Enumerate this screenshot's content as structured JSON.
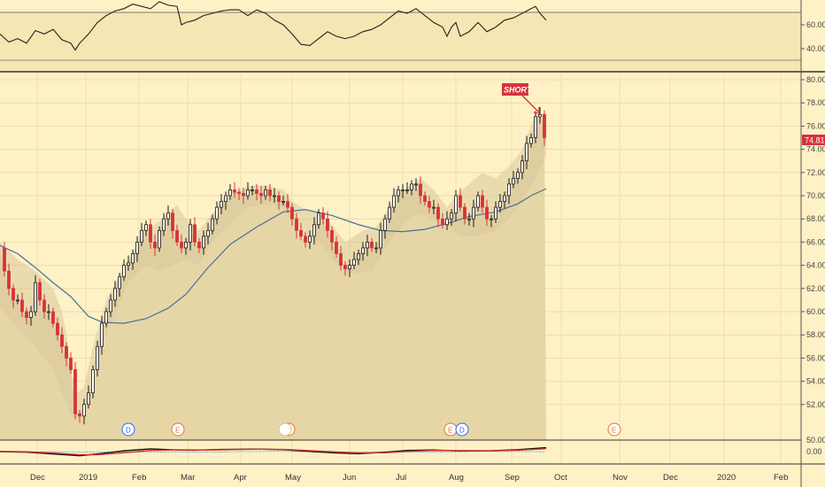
{
  "chart_data": {
    "type": "candlestick",
    "symbol_price_label": "74.81",
    "annotation": "SHORT",
    "x_axis_labels": [
      "Dec",
      "2019",
      "Feb",
      "Mar",
      "Apr",
      "May",
      "Jun",
      "Jul",
      "Aug",
      "Sep",
      "Oct",
      "Nov",
      "Dec",
      "2020",
      "Feb"
    ],
    "price_axis": {
      "ylim": [
        49,
        81.5
      ],
      "ticks": [
        "52.00",
        "54.00",
        "56.00",
        "58.00",
        "60.00",
        "62.00",
        "64.00",
        "66.00",
        "68.00",
        "70.00",
        "72.00",
        "74.00",
        "76.00",
        "78.00",
        "80.00"
      ]
    },
    "rsi_axis": {
      "ticks": [
        "40.00",
        "60.00"
      ]
    },
    "macd_axis": {
      "ticks": [
        "50.00",
        "0.00"
      ]
    },
    "event_markers": [
      {
        "label": "D",
        "color": "#2962ff"
      },
      {
        "label": "E",
        "color": "#e8712b"
      },
      {
        "label": "E",
        "color": "#e8712b"
      },
      {
        "label": "E",
        "color": "#e8712b"
      },
      {
        "label": "D",
        "color": "#2962ff"
      },
      {
        "label": "E",
        "color": "#e8712b"
      }
    ],
    "price_path": [
      [
        0,
        65.5
      ],
      [
        5,
        63.5
      ],
      [
        10,
        62
      ],
      [
        15,
        61
      ],
      [
        20,
        61
      ],
      [
        25,
        60
      ],
      [
        30,
        59.5
      ],
      [
        35,
        60
      ],
      [
        40,
        62.5
      ],
      [
        45,
        61
      ],
      [
        50,
        60
      ],
      [
        55,
        60
      ],
      [
        60,
        59
      ],
      [
        65,
        58
      ],
      [
        70,
        57
      ],
      [
        75,
        56
      ],
      [
        80,
        55
      ],
      [
        85,
        51.2
      ],
      [
        90,
        51
      ],
      [
        95,
        52
      ],
      [
        100,
        53
      ],
      [
        105,
        55
      ],
      [
        110,
        57
      ],
      [
        115,
        59
      ],
      [
        120,
        60
      ],
      [
        125,
        61
      ],
      [
        130,
        62
      ],
      [
        135,
        63
      ],
      [
        140,
        64
      ],
      [
        145,
        64.2
      ],
      [
        150,
        65
      ],
      [
        155,
        66
      ],
      [
        160,
        67
      ],
      [
        165,
        67.5
      ],
      [
        170,
        66
      ],
      [
        175,
        65.5
      ],
      [
        180,
        67
      ],
      [
        185,
        68
      ],
      [
        190,
        68.5
      ],
      [
        195,
        67
      ],
      [
        200,
        66
      ],
      [
        205,
        65.5
      ],
      [
        210,
        66
      ],
      [
        215,
        67.5
      ],
      [
        220,
        66
      ],
      [
        225,
        65.5
      ],
      [
        230,
        66.5
      ],
      [
        235,
        67
      ],
      [
        240,
        68
      ],
      [
        245,
        69
      ],
      [
        250,
        69.5
      ],
      [
        255,
        70
      ],
      [
        260,
        70.5
      ],
      [
        265,
        70.3
      ],
      [
        270,
        70.2
      ],
      [
        275,
        70
      ],
      [
        280,
        70.5
      ],
      [
        285,
        70.5
      ],
      [
        290,
        70.2
      ],
      [
        295,
        70
      ],
      [
        300,
        70.5
      ],
      [
        305,
        70
      ],
      [
        310,
        70
      ],
      [
        315,
        69.5
      ],
      [
        320,
        69.5
      ],
      [
        325,
        69
      ],
      [
        330,
        68
      ],
      [
        335,
        67
      ],
      [
        340,
        66.5
      ],
      [
        345,
        66
      ],
      [
        350,
        66.5
      ],
      [
        355,
        67.5
      ],
      [
        360,
        68.5
      ],
      [
        365,
        68
      ],
      [
        370,
        67
      ],
      [
        375,
        66
      ],
      [
        380,
        65
      ],
      [
        385,
        64
      ],
      [
        390,
        63.7
      ],
      [
        395,
        64
      ],
      [
        400,
        64.5
      ],
      [
        405,
        65
      ],
      [
        410,
        65.5
      ],
      [
        415,
        66
      ],
      [
        420,
        65.5
      ],
      [
        425,
        65.5
      ],
      [
        430,
        67
      ],
      [
        435,
        68
      ],
      [
        440,
        69
      ],
      [
        445,
        70
      ],
      [
        450,
        70.5
      ],
      [
        455,
        70.5
      ],
      [
        460,
        70.5
      ],
      [
        465,
        71
      ],
      [
        470,
        71
      ],
      [
        475,
        70
      ],
      [
        480,
        69.5
      ],
      [
        485,
        69
      ],
      [
        490,
        69
      ],
      [
        495,
        68
      ],
      [
        500,
        67.5
      ],
      [
        505,
        68
      ],
      [
        510,
        68.5
      ],
      [
        515,
        70
      ],
      [
        520,
        69
      ],
      [
        525,
        68
      ],
      [
        530,
        68
      ],
      [
        535,
        69
      ],
      [
        540,
        70
      ],
      [
        545,
        69
      ],
      [
        550,
        68
      ],
      [
        555,
        68
      ],
      [
        560,
        69
      ],
      [
        565,
        69.5
      ],
      [
        570,
        70
      ],
      [
        575,
        71
      ],
      [
        580,
        71.5
      ],
      [
        585,
        72
      ],
      [
        590,
        73
      ],
      [
        595,
        74.5
      ],
      [
        600,
        75
      ],
      [
        605,
        76.8
      ],
      [
        610,
        77
      ],
      [
        615,
        75
      ]
    ],
    "ma_path": [
      [
        0,
        65.7
      ],
      [
        20,
        65
      ],
      [
        40,
        63.8
      ],
      [
        60,
        62.5
      ],
      [
        80,
        61.3
      ],
      [
        100,
        59.6
      ],
      [
        115,
        59.1
      ],
      [
        140,
        59
      ],
      [
        165,
        59.4
      ],
      [
        190,
        60.3
      ],
      [
        210,
        61.5
      ],
      [
        235,
        63.8
      ],
      [
        260,
        65.8
      ],
      [
        290,
        67.3
      ],
      [
        320,
        68.6
      ],
      [
        345,
        68.8
      ],
      [
        375,
        68.3
      ],
      [
        405,
        67.5
      ],
      [
        430,
        67
      ],
      [
        455,
        66.9
      ],
      [
        480,
        67.1
      ],
      [
        505,
        67.6
      ],
      [
        530,
        68.2
      ],
      [
        560,
        68.6
      ],
      [
        585,
        69.3
      ],
      [
        600,
        70
      ],
      [
        617,
        70.6
      ]
    ],
    "upper_band_path": [
      [
        0,
        66
      ],
      [
        20,
        64.5
      ],
      [
        40,
        63.5
      ],
      [
        60,
        62
      ],
      [
        70,
        60
      ],
      [
        75,
        58
      ],
      [
        80,
        55
      ],
      [
        87,
        53
      ],
      [
        95,
        53.5
      ],
      [
        105,
        57
      ],
      [
        120,
        61
      ],
      [
        145,
        64.5
      ],
      [
        165,
        67
      ],
      [
        180,
        67.8
      ],
      [
        190,
        68.6
      ],
      [
        200,
        69.2
      ],
      [
        210,
        68
      ],
      [
        225,
        67
      ],
      [
        240,
        68.5
      ],
      [
        260,
        70
      ],
      [
        280,
        70.8
      ],
      [
        300,
        70.9
      ],
      [
        320,
        70.5
      ],
      [
        330,
        69.5
      ],
      [
        345,
        68.8
      ],
      [
        360,
        68.5
      ],
      [
        375,
        67.5
      ],
      [
        390,
        66
      ],
      [
        400,
        66.5
      ],
      [
        410,
        67
      ],
      [
        425,
        67.3
      ],
      [
        440,
        69
      ],
      [
        460,
        70.7
      ],
      [
        475,
        71.5
      ],
      [
        490,
        70.5
      ],
      [
        505,
        69
      ],
      [
        515,
        70
      ],
      [
        530,
        71
      ],
      [
        545,
        72
      ],
      [
        560,
        71.5
      ],
      [
        575,
        72.5
      ],
      [
        590,
        74
      ],
      [
        605,
        77
      ],
      [
        617,
        76.5
      ]
    ],
    "lower_band_path": [
      [
        0,
        60.5
      ],
      [
        20,
        58.5
      ],
      [
        40,
        57
      ],
      [
        60,
        55
      ],
      [
        75,
        52
      ],
      [
        85,
        50.5
      ],
      [
        95,
        51.5
      ],
      [
        105,
        55
      ],
      [
        120,
        58
      ],
      [
        145,
        62.5
      ],
      [
        165,
        64
      ],
      [
        180,
        63.5
      ],
      [
        195,
        64
      ],
      [
        210,
        64.5
      ],
      [
        225,
        64
      ],
      [
        240,
        66
      ],
      [
        260,
        67.5
      ],
      [
        280,
        69
      ],
      [
        300,
        69.3
      ],
      [
        320,
        69
      ],
      [
        330,
        67.5
      ],
      [
        345,
        66.3
      ],
      [
        360,
        66
      ],
      [
        375,
        64.5
      ],
      [
        390,
        63.5
      ],
      [
        400,
        63.3
      ],
      [
        420,
        63.5
      ],
      [
        440,
        66
      ],
      [
        460,
        68
      ],
      [
        475,
        68.5
      ],
      [
        490,
        67.8
      ],
      [
        505,
        67.5
      ],
      [
        520,
        66.5
      ],
      [
        540,
        66.5
      ],
      [
        560,
        67
      ],
      [
        575,
        68
      ],
      [
        590,
        69.5
      ],
      [
        605,
        71.5
      ],
      [
        617,
        73.5
      ]
    ],
    "rsi_path": [
      [
        0,
        52
      ],
      [
        10,
        45
      ],
      [
        20,
        48
      ],
      [
        30,
        44
      ],
      [
        40,
        55
      ],
      [
        50,
        52
      ],
      [
        60,
        56
      ],
      [
        70,
        47
      ],
      [
        80,
        44
      ],
      [
        85,
        38
      ],
      [
        90,
        44
      ],
      [
        100,
        52
      ],
      [
        110,
        62
      ],
      [
        120,
        68
      ],
      [
        130,
        72
      ],
      [
        140,
        74
      ],
      [
        150,
        78
      ],
      [
        160,
        76
      ],
      [
        170,
        74
      ],
      [
        180,
        80
      ],
      [
        190,
        77
      ],
      [
        200,
        76
      ],
      [
        205,
        60
      ],
      [
        210,
        62
      ],
      [
        220,
        64
      ],
      [
        230,
        68
      ],
      [
        240,
        70
      ],
      [
        250,
        72
      ],
      [
        260,
        73
      ],
      [
        270,
        73
      ],
      [
        280,
        68
      ],
      [
        290,
        73
      ],
      [
        300,
        70
      ],
      [
        310,
        64
      ],
      [
        320,
        60
      ],
      [
        330,
        52
      ],
      [
        340,
        43
      ],
      [
        350,
        42
      ],
      [
        360,
        48
      ],
      [
        370,
        54
      ],
      [
        380,
        50
      ],
      [
        390,
        48
      ],
      [
        400,
        50
      ],
      [
        410,
        54
      ],
      [
        420,
        56
      ],
      [
        430,
        60
      ],
      [
        440,
        66
      ],
      [
        450,
        72
      ],
      [
        460,
        70
      ],
      [
        470,
        74
      ],
      [
        480,
        68
      ],
      [
        490,
        62
      ],
      [
        500,
        58
      ],
      [
        505,
        50
      ],
      [
        510,
        58
      ],
      [
        515,
        62
      ],
      [
        520,
        50
      ],
      [
        530,
        54
      ],
      [
        540,
        62
      ],
      [
        550,
        54
      ],
      [
        560,
        58
      ],
      [
        570,
        64
      ],
      [
        580,
        66
      ],
      [
        590,
        70
      ],
      [
        600,
        74
      ],
      [
        605,
        76
      ],
      [
        610,
        70
      ],
      [
        617,
        64
      ]
    ],
    "macd_line_path": [
      [
        0,
        0
      ],
      [
        30,
        -0.3
      ],
      [
        60,
        -1.2
      ],
      [
        90,
        -2.1
      ],
      [
        110,
        -1.2
      ],
      [
        140,
        0.4
      ],
      [
        170,
        1.4
      ],
      [
        200,
        0.8
      ],
      [
        220,
        0.7
      ],
      [
        250,
        1.1
      ],
      [
        290,
        1.3
      ],
      [
        320,
        1.0
      ],
      [
        345,
        0.2
      ],
      [
        375,
        -0.6
      ],
      [
        405,
        -1.1
      ],
      [
        435,
        -0.3
      ],
      [
        460,
        0.6
      ],
      [
        490,
        0.8
      ],
      [
        520,
        0.3
      ],
      [
        555,
        0.4
      ],
      [
        585,
        1.0
      ],
      [
        617,
        2.0
      ]
    ],
    "macd_signal_path": [
      [
        0,
        0.1
      ],
      [
        30,
        -0.1
      ],
      [
        60,
        -0.7
      ],
      [
        90,
        -1.6
      ],
      [
        110,
        -1.6
      ],
      [
        140,
        -0.6
      ],
      [
        170,
        0.6
      ],
      [
        200,
        0.9
      ],
      [
        230,
        0.8
      ],
      [
        260,
        1.0
      ],
      [
        290,
        1.2
      ],
      [
        320,
        1.1
      ],
      [
        345,
        0.6
      ],
      [
        375,
        -0.1
      ],
      [
        405,
        -0.7
      ],
      [
        435,
        -0.6
      ],
      [
        460,
        0.1
      ],
      [
        490,
        0.6
      ],
      [
        520,
        0.5
      ],
      [
        555,
        0.4
      ],
      [
        585,
        0.7
      ],
      [
        617,
        1.5
      ]
    ]
  }
}
